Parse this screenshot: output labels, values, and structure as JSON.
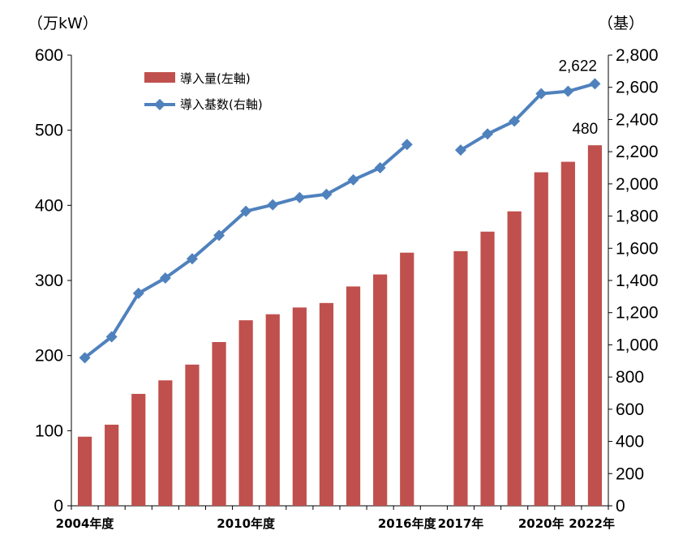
{
  "chart_data": {
    "type": "bar+line",
    "left_axis_unit": "（万kW）",
    "right_axis_unit": "（基）",
    "left_ylim": [
      0,
      600
    ],
    "left_ticks": [
      "0",
      "100",
      "200",
      "300",
      "400",
      "500",
      "600"
    ],
    "right_ylim": [
      0,
      2800
    ],
    "right_ticks": [
      "0",
      "200",
      "400",
      "600",
      "800",
      "1,000",
      "1,200",
      "1,400",
      "1,600",
      "1,800",
      "2,000",
      "2,200",
      "2,400",
      "2,600",
      "2,800"
    ],
    "x_tick_labels": [
      "2004年度",
      "2010年度",
      "2016年度",
      "2017年",
      "2020年",
      "2022年"
    ],
    "series": [
      {
        "name": "導入量(左軸)",
        "type": "bar",
        "axis": "left",
        "color": "#C0504D",
        "values": [
          92,
          108,
          149,
          167,
          188,
          218,
          247,
          255,
          264,
          270,
          292,
          308,
          337,
          null,
          339,
          365,
          392,
          444,
          458,
          480
        ]
      },
      {
        "name": "導入基数(右軸)",
        "type": "line",
        "axis": "right",
        "color": "#4F81BD",
        "values": [
          920,
          1050,
          1320,
          1415,
          1535,
          1680,
          1830,
          1870,
          1915,
          1935,
          2025,
          2100,
          2245,
          null,
          2210,
          2310,
          2390,
          2560,
          2575,
          2622
        ]
      }
    ],
    "data_labels": {
      "bar_last": "480",
      "line_last": "2,622"
    },
    "legend_position": "top-left"
  }
}
